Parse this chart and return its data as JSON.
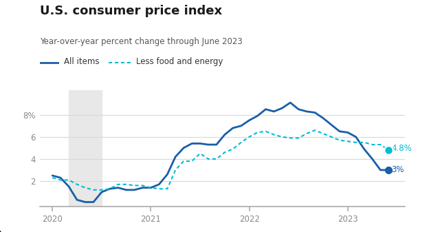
{
  "title": "U.S. consumer price index",
  "subtitle": "Year-over-year percent change through June 2023",
  "legend_all": "All items",
  "legend_core": "Less food and energy",
  "title_color": "#1a1a1a",
  "subtitle_color": "#555555",
  "all_items_color": "#1a5ea8",
  "core_color": "#00bcd4",
  "end_label_all": "3%",
  "end_label_core": "4.8%",
  "recession_shade_color": "#e8e8e8",
  "background_color": "#ffffff",
  "ylim": [
    -0.3,
    10.2
  ],
  "yticks": [
    2,
    4,
    6,
    8
  ],
  "ytick_labels": [
    "2",
    "4",
    "6",
    "8%"
  ],
  "all_items_x": [
    2020.0,
    2020.083,
    2020.167,
    2020.25,
    2020.333,
    2020.417,
    2020.5,
    2020.583,
    2020.667,
    2020.75,
    2020.833,
    2020.917,
    2021.0,
    2021.083,
    2021.167,
    2021.25,
    2021.333,
    2021.417,
    2021.5,
    2021.583,
    2021.667,
    2021.75,
    2021.833,
    2021.917,
    2022.0,
    2022.083,
    2022.167,
    2022.25,
    2022.333,
    2022.417,
    2022.5,
    2022.583,
    2022.667,
    2022.75,
    2022.833,
    2022.917,
    2023.0,
    2023.083,
    2023.167,
    2023.25,
    2023.333,
    2023.417
  ],
  "all_items_y": [
    2.5,
    2.3,
    1.5,
    0.3,
    0.1,
    0.1,
    1.0,
    1.3,
    1.4,
    1.2,
    1.2,
    1.4,
    1.4,
    1.7,
    2.6,
    4.2,
    5.0,
    5.4,
    5.4,
    5.3,
    5.3,
    6.2,
    6.8,
    7.0,
    7.5,
    7.9,
    8.5,
    8.3,
    8.6,
    9.1,
    8.5,
    8.3,
    8.2,
    7.7,
    7.1,
    6.5,
    6.4,
    6.0,
    4.9,
    4.0,
    3.0,
    3.0
  ],
  "core_x": [
    2020.0,
    2020.083,
    2020.167,
    2020.25,
    2020.333,
    2020.417,
    2020.5,
    2020.583,
    2020.667,
    2020.75,
    2020.833,
    2020.917,
    2021.0,
    2021.083,
    2021.167,
    2021.25,
    2021.333,
    2021.417,
    2021.5,
    2021.583,
    2021.667,
    2021.75,
    2021.833,
    2021.917,
    2022.0,
    2022.083,
    2022.167,
    2022.25,
    2022.333,
    2022.417,
    2022.5,
    2022.583,
    2022.667,
    2022.75,
    2022.833,
    2022.917,
    2023.0,
    2023.083,
    2023.167,
    2023.25,
    2023.333,
    2023.417
  ],
  "core_y": [
    2.3,
    2.1,
    2.1,
    1.7,
    1.4,
    1.2,
    1.2,
    1.3,
    1.7,
    1.7,
    1.6,
    1.6,
    1.4,
    1.3,
    1.3,
    3.0,
    3.8,
    3.8,
    4.5,
    4.0,
    4.0,
    4.6,
    4.9,
    5.5,
    6.0,
    6.4,
    6.5,
    6.2,
    6.0,
    5.9,
    5.9,
    6.3,
    6.6,
    6.3,
    6.0,
    5.7,
    5.6,
    5.5,
    5.5,
    5.3,
    5.3,
    4.8
  ],
  "recession_xmin": 2020.167,
  "recession_xmax": 2020.5,
  "xlim": [
    2019.87,
    2023.58
  ]
}
